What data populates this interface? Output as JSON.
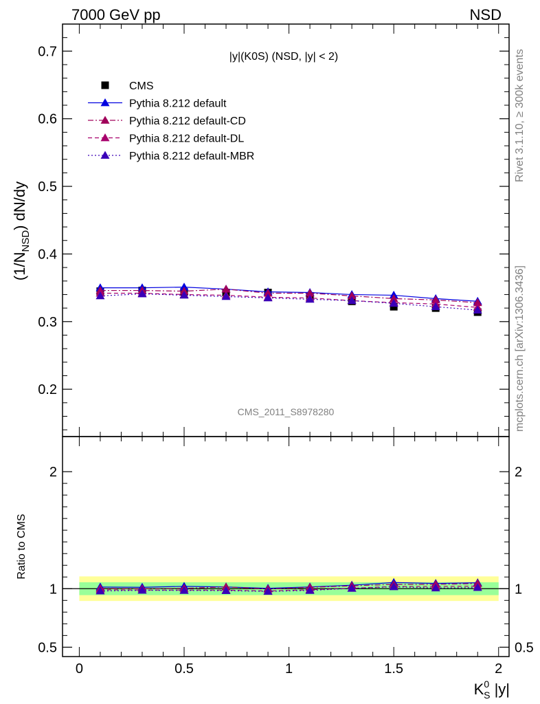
{
  "header": {
    "left": "7000 GeV pp",
    "right": "NSD"
  },
  "side_text": {
    "rivet": "Rivet 3.1.10, ≥ 300k events",
    "mcplots": "mcplots.cern.ch [arXiv:1306.3436]"
  },
  "colors": {
    "cms": "#000000",
    "default": "#0000e0",
    "cd": "#a0005a",
    "dl": "#a8006c",
    "mbr": "#3a00b8",
    "band_inner": "#99ff99",
    "band_outer": "#ffff99"
  },
  "chart_data": [
    {
      "type": "line",
      "title": "|y|(K0S) (NSD, |y| < 2)",
      "watermark": "CMS_2011_S8978280",
      "ylabel_main": "(1/N",
      "ylabel_sub": "NSD",
      "ylabel_tail": ") dN/dy",
      "ylim": [
        0.13,
        0.74
      ],
      "yticks": [
        0.2,
        0.3,
        0.4,
        0.5,
        0.6,
        0.7
      ],
      "ytick_labels": [
        "0.2",
        "0.3",
        "0.4",
        "0.5",
        "0.6",
        "0.7"
      ],
      "x": [
        0.1,
        0.3,
        0.5,
        0.7,
        0.9,
        1.1,
        1.3,
        1.5,
        1.7,
        1.9
      ],
      "legend_position": "top-left",
      "series": [
        {
          "name": "CMS",
          "style": "square",
          "values": [
            0.345,
            0.346,
            0.344,
            0.343,
            0.343,
            0.338,
            0.33,
            0.322,
            0.32,
            0.314
          ]
        },
        {
          "name": "Pythia 8.212 default",
          "style": "solid",
          "values": [
            0.35,
            0.35,
            0.351,
            0.348,
            0.344,
            0.343,
            0.34,
            0.339,
            0.334,
            0.33
          ]
        },
        {
          "name": "Pythia 8.212 default-CD",
          "style": "dashdot",
          "values": [
            0.346,
            0.346,
            0.345,
            0.348,
            0.342,
            0.342,
            0.338,
            0.334,
            0.332,
            0.328
          ]
        },
        {
          "name": "Pythia 8.212 default-DL",
          "style": "dashed",
          "values": [
            0.342,
            0.342,
            0.34,
            0.339,
            0.336,
            0.335,
            0.331,
            0.328,
            0.326,
            0.321
          ]
        },
        {
          "name": "Pythia 8.212 default-MBR",
          "style": "dotted",
          "values": [
            0.338,
            0.341,
            0.339,
            0.337,
            0.335,
            0.333,
            0.331,
            0.327,
            0.322,
            0.317
          ]
        }
      ]
    },
    {
      "type": "line",
      "ylabel": "Ratio to CMS",
      "xlabel_main": "K",
      "xlabel_sup": "0",
      "xlabel_sub": "S",
      "xlabel_tail": " |y|",
      "ylim": [
        0.42,
        2.3
      ],
      "yticks": [
        0.5,
        1,
        2
      ],
      "ytick_labels": [
        "0.5",
        "1",
        "2"
      ],
      "xlim": [
        -0.08,
        2.05
      ],
      "xticks": [
        0,
        0.5,
        1,
        1.5,
        2
      ],
      "xtick_labels": [
        "0",
        "0.5",
        "1",
        "1.5",
        "2"
      ],
      "bands": {
        "x_range": [
          0.0,
          2.0
        ],
        "inner": [
          0.945,
          1.055
        ],
        "outer": [
          0.895,
          1.105
        ]
      },
      "x": [
        0.1,
        0.3,
        0.5,
        0.7,
        0.9,
        1.1,
        1.3,
        1.5,
        1.7,
        1.9
      ],
      "series": [
        {
          "name": "Pythia 8.212 default",
          "style": "solid",
          "values": [
            1.014,
            1.012,
            1.02,
            1.015,
            1.003,
            1.015,
            1.03,
            1.053,
            1.045,
            1.051
          ]
        },
        {
          "name": "Pythia 8.212 default-CD",
          "style": "dashdot",
          "values": [
            1.003,
            1.0,
            1.003,
            1.015,
            0.997,
            1.012,
            1.024,
            1.037,
            1.037,
            1.044
          ]
        },
        {
          "name": "Pythia 8.212 default-DL",
          "style": "dashed",
          "values": [
            0.991,
            0.988,
            0.988,
            0.988,
            0.98,
            0.991,
            1.003,
            1.019,
            1.019,
            1.022
          ]
        },
        {
          "name": "Pythia 8.212 default-MBR",
          "style": "dotted",
          "values": [
            0.98,
            0.986,
            0.985,
            0.983,
            0.977,
            0.985,
            1.003,
            1.016,
            1.006,
            1.01
          ]
        }
      ]
    }
  ]
}
